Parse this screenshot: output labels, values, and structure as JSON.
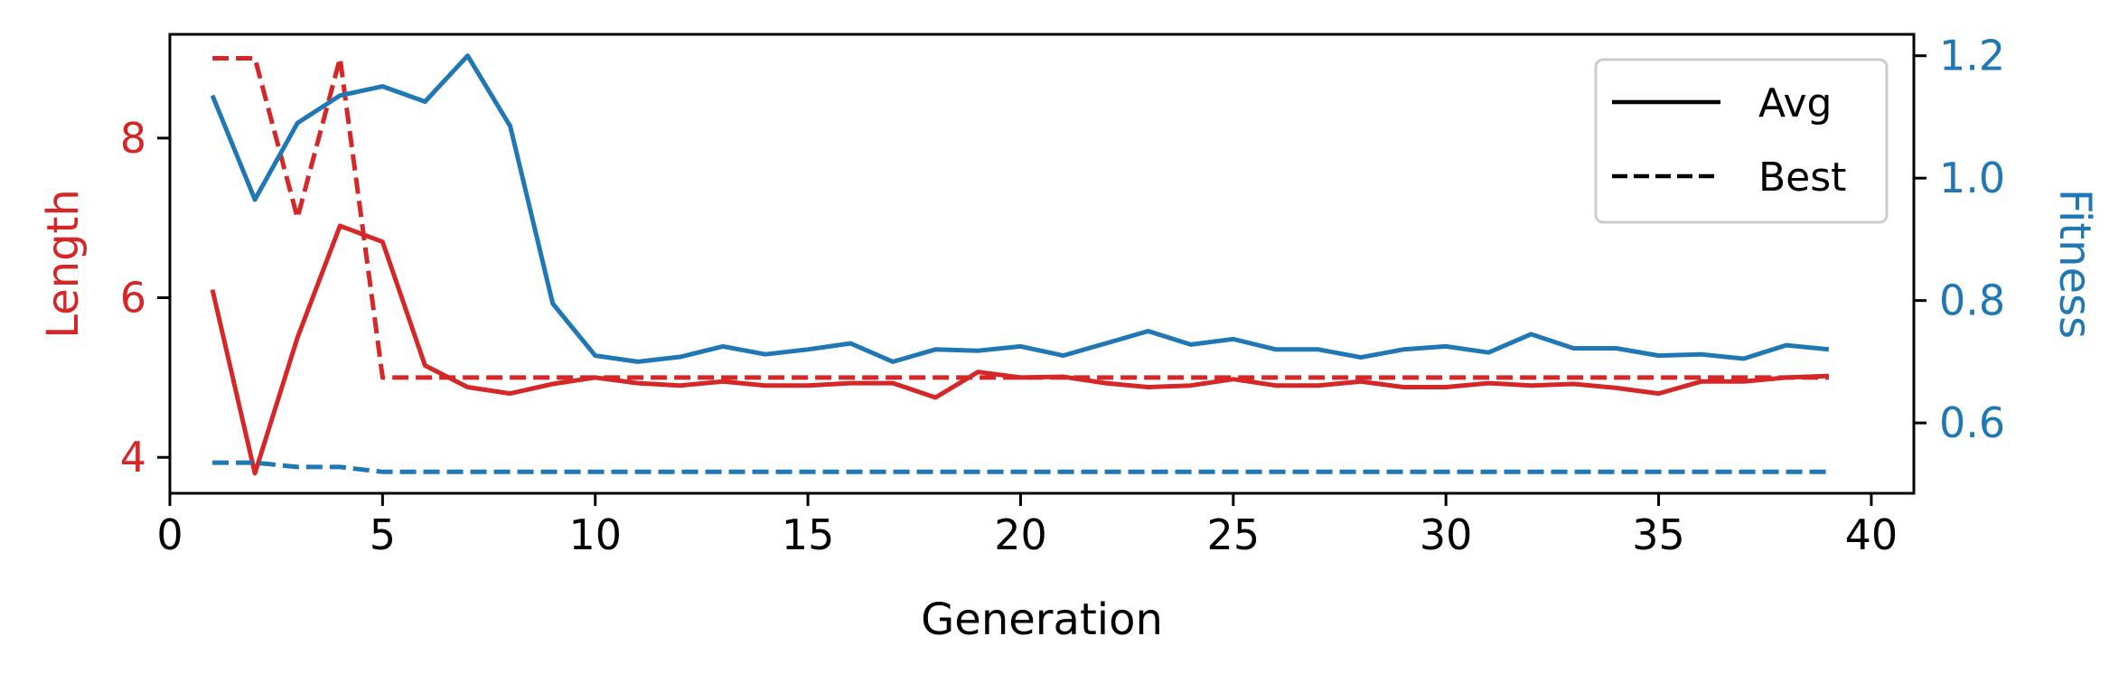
{
  "chart_data": {
    "type": "line",
    "xlabel": "Generation",
    "ylabel_left": "Length",
    "ylabel_right": "Fitness",
    "xlim": [
      0,
      41
    ],
    "ylim_left": [
      3.55,
      9.3
    ],
    "ylim_right": [
      0.485,
      1.235
    ],
    "xticks": [
      0,
      5,
      10,
      15,
      20,
      25,
      30,
      35,
      40
    ],
    "yticks_left": [
      4,
      6,
      8
    ],
    "yticks_right": [
      0.6,
      0.8,
      1.0,
      1.2
    ],
    "ytick_labels_right": [
      "0.6",
      "0.8",
      "1.0",
      "1.2"
    ],
    "grid": false,
    "legend_position": "top-right",
    "legend": [
      {
        "label": "Avg",
        "style": "solid"
      },
      {
        "label": "Best",
        "style": "dashed"
      }
    ],
    "x": [
      1,
      2,
      3,
      4,
      5,
      6,
      7,
      8,
      9,
      10,
      11,
      12,
      13,
      14,
      15,
      16,
      17,
      18,
      19,
      20,
      21,
      22,
      23,
      24,
      25,
      26,
      27,
      28,
      29,
      30,
      31,
      32,
      33,
      34,
      35,
      36,
      37,
      38,
      39
    ],
    "series": [
      {
        "axis": "left",
        "color": "#d62728",
        "style": "solid",
        "values": [
          6.1,
          3.8,
          5.5,
          6.9,
          6.7,
          5.15,
          4.88,
          4.8,
          4.92,
          5.0,
          4.93,
          4.9,
          4.95,
          4.9,
          4.9,
          4.93,
          4.93,
          4.75,
          5.07,
          5.0,
          5.01,
          4.93,
          4.88,
          4.9,
          4.98,
          4.9,
          4.9,
          4.95,
          4.88,
          4.88,
          4.93,
          4.9,
          4.92,
          4.87,
          4.8,
          4.95,
          4.95,
          5.0,
          5.02
        ]
      },
      {
        "axis": "left",
        "color": "#d62728",
        "style": "dashed",
        "values": [
          9.0,
          9.0,
          7.0,
          9.0,
          5.0,
          5.0,
          5.0,
          5.0,
          5.0,
          5.0,
          5.0,
          5.0,
          5.0,
          5.0,
          5.0,
          5.0,
          5.0,
          5.0,
          5.0,
          5.0,
          5.0,
          5.0,
          5.0,
          5.0,
          5.0,
          5.0,
          5.0,
          5.0,
          5.0,
          5.0,
          5.0,
          5.0,
          5.0,
          5.0,
          5.0,
          5.0,
          5.0,
          5.0,
          5.0
        ]
      },
      {
        "axis": "right",
        "color": "#1f77b4",
        "style": "solid",
        "values": [
          1.135,
          0.965,
          1.09,
          1.135,
          1.15,
          1.125,
          1.2,
          1.085,
          0.795,
          0.71,
          0.7,
          0.708,
          0.725,
          0.712,
          0.72,
          0.73,
          0.7,
          0.72,
          0.718,
          0.725,
          0.71,
          0.73,
          0.75,
          0.728,
          0.737,
          0.72,
          0.72,
          0.707,
          0.72,
          0.725,
          0.715,
          0.745,
          0.722,
          0.722,
          0.71,
          0.712,
          0.705,
          0.727,
          0.72
        ]
      },
      {
        "axis": "right",
        "color": "#1f77b4",
        "style": "dashed",
        "values": [
          0.535,
          0.535,
          0.528,
          0.528,
          0.52,
          0.52,
          0.52,
          0.52,
          0.52,
          0.52,
          0.52,
          0.52,
          0.52,
          0.52,
          0.52,
          0.52,
          0.52,
          0.52,
          0.52,
          0.52,
          0.52,
          0.52,
          0.52,
          0.52,
          0.52,
          0.52,
          0.52,
          0.52,
          0.52,
          0.52,
          0.52,
          0.52,
          0.52,
          0.52,
          0.52,
          0.52,
          0.52,
          0.52,
          0.52
        ]
      }
    ],
    "colors": {
      "left_axis": "#d62728",
      "right_axis": "#1f77b4",
      "frame": "#000000"
    }
  }
}
